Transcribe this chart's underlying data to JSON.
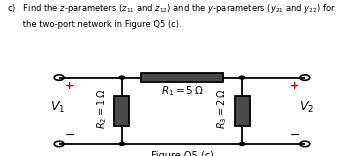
{
  "title": "Figure Q5 (c)",
  "R1_label": "$R_1 = 5\\,\\Omega$",
  "R2_label": "$R_2 = 1\\,\\Omega$",
  "R3_label": "$R_3 = 2\\,\\Omega$",
  "V1_label": "$V_1$",
  "V2_label": "$V_2$",
  "bg_color": "#ffffff",
  "wire_color": "#000000",
  "resistor_fill": "#4a4a4a",
  "plus_color": "#cc0000",
  "fig_width": 3.5,
  "fig_height": 1.56,
  "dpi": 100,
  "q_line1": "c)   Find the $z$-parameters ($z_{11}$ and $z_{12}$) and the $y$-parameters ($y_{21}$ and $y_{22}$) for",
  "q_line2": "      the two-port network in Figure Q5 (c)."
}
